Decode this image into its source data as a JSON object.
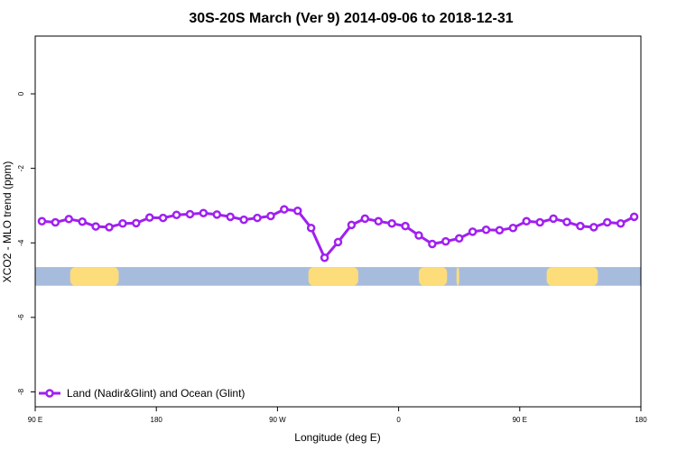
{
  "chart_data": {
    "type": "line",
    "title": "30S-20S March (Ver 9)   2014-09-06 to 2018-12-31",
    "xlabel": "Longitude (deg E)",
    "ylabel": "XCO2 - MLO trend (ppm)",
    "xlim": [
      90,
      540
    ],
    "ylim": [
      -8.4,
      1.55
    ],
    "x_ticks": [
      {
        "value": 90,
        "label": "90 E"
      },
      {
        "value": 180,
        "label": "180"
      },
      {
        "value": 270,
        "label": "90 W"
      },
      {
        "value": 360,
        "label": "0"
      },
      {
        "value": 450,
        "label": "90 E"
      },
      {
        "value": 540,
        "label": "180"
      }
    ],
    "y_ticks": [
      {
        "value": 0,
        "label": "0"
      },
      {
        "value": -2,
        "label": "-2"
      },
      {
        "value": -4,
        "label": "-4"
      },
      {
        "value": -6,
        "label": "-6"
      },
      {
        "value": -8,
        "label": "-8"
      }
    ],
    "series": [
      {
        "name": "Land (Nadir&Glint) and Ocean (Glint)",
        "color": "#a020f0",
        "x": [
          95,
          105,
          115,
          125,
          135,
          145,
          155,
          165,
          175,
          185,
          195,
          205,
          215,
          225,
          235,
          245,
          255,
          265,
          275,
          285,
          295,
          305,
          315,
          325,
          335,
          345,
          355,
          365,
          375,
          385,
          395,
          405,
          415,
          425,
          435,
          445,
          455,
          465,
          475,
          485,
          495,
          505,
          515,
          525,
          535
        ],
        "y": [
          -3.42,
          -3.45,
          -3.36,
          -3.43,
          -3.56,
          -3.58,
          -3.48,
          -3.47,
          -3.32,
          -3.33,
          -3.25,
          -3.23,
          -3.2,
          -3.24,
          -3.3,
          -3.38,
          -3.33,
          -3.28,
          -3.1,
          -3.14,
          -3.6,
          -4.4,
          -3.98,
          -3.52,
          -3.35,
          -3.42,
          -3.48,
          -3.55,
          -3.8,
          -4.03,
          -3.96,
          -3.88,
          -3.7,
          -3.65,
          -3.66,
          -3.6,
          -3.42,
          -3.45,
          -3.35,
          -3.44,
          -3.55,
          -3.58,
          -3.45,
          -3.48,
          -3.3
        ]
      }
    ],
    "land_mask": {
      "y_range": [
        -4.65,
        -5.15
      ],
      "ocean_color": "#a7bcdc",
      "land_color": "#fddc7a",
      "land_segments": [
        [
          116,
          152
        ],
        [
          293,
          330
        ],
        [
          375,
          396
        ],
        [
          403,
          405
        ],
        [
          470,
          508
        ]
      ]
    },
    "legend": {
      "position": "bottom-left"
    }
  }
}
